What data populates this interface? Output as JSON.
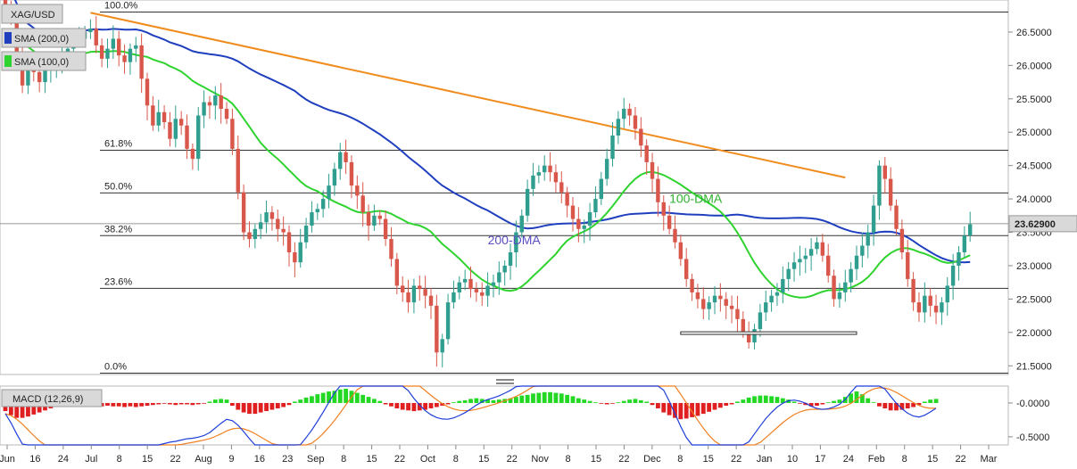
{
  "chart_data": [
    {
      "type": "candlestick",
      "symbol": "XAG/USD",
      "legend": [
        {
          "name": "SMA (200,0)",
          "color": "#1f3fbf"
        },
        {
          "name": "SMA (100,0)",
          "color": "#2fd32f"
        }
      ],
      "last_price": "23.62900",
      "y_ticks": [
        "26.5000",
        "26.0000",
        "25.5000",
        "25.0000",
        "24.5000",
        "24.0000",
        "23.5000",
        "23.0000",
        "22.5000",
        "22.0000",
        "21.5000"
      ],
      "ylim": [
        21.37,
        26.98
      ],
      "x_ticks": [
        "Jun",
        "16",
        "24",
        "Jul",
        "8",
        "15",
        "22",
        "Aug",
        "9",
        "16",
        "23",
        "Sep",
        "8",
        "15",
        "22",
        "Oct",
        "8",
        "15",
        "22",
        "Nov",
        "8",
        "15",
        "22",
        "Dec",
        "8",
        "15",
        "22",
        "Jan",
        "10",
        "17",
        "24",
        "Feb",
        "8",
        "15",
        "22",
        "Mar"
      ],
      "fib_levels": [
        {
          "label": "100.0%",
          "value": 26.8
        },
        {
          "label": "61.8%",
          "value": 24.73
        },
        {
          "label": "50.0%",
          "value": 24.09
        },
        {
          "label": "38.2%",
          "value": 23.45
        },
        {
          "label": "23.6%",
          "value": 22.66
        },
        {
          "label": "0.0%",
          "value": 21.39
        }
      ],
      "annotations": [
        {
          "text": "200-DMA",
          "color": "#5a4fc0"
        },
        {
          "text": "100-DMA",
          "color": "#2fb02f"
        }
      ],
      "trendline": {
        "color": "#f08c1e",
        "from": {
          "i": 15,
          "v": 26.79
        },
        "to": {
          "i": 148,
          "v": 24.32
        }
      },
      "support_box": {
        "from_i": 119,
        "to_i": 150,
        "low": 21.97,
        "high": 22.01
      },
      "closes": [
        26.84,
        26.7,
        26.2,
        25.7,
        25.95,
        25.9,
        25.75,
        25.92,
        26.0,
        26.08,
        26.15,
        26.25,
        26.35,
        26.4,
        26.5,
        26.55,
        26.3,
        26.1,
        26.25,
        26.4,
        26.15,
        26.05,
        26.25,
        26.3,
        25.8,
        25.4,
        25.1,
        25.3,
        25.15,
        24.9,
        25.2,
        25.1,
        24.75,
        24.6,
        25.25,
        25.45,
        25.4,
        25.55,
        25.35,
        25.2,
        24.75,
        24.1,
        23.5,
        23.4,
        23.55,
        23.65,
        23.8,
        23.7,
        23.55,
        23.5,
        23.2,
        23.05,
        23.35,
        23.6,
        23.8,
        23.85,
        24.0,
        24.2,
        24.45,
        24.7,
        24.55,
        24.2,
        24.05,
        23.8,
        23.6,
        23.75,
        23.7,
        23.4,
        23.1,
        22.7,
        22.6,
        22.45,
        22.7,
        22.65,
        22.55,
        22.4,
        21.7,
        21.9,
        22.45,
        22.6,
        22.75,
        22.8,
        22.65,
        22.6,
        22.55,
        22.7,
        22.75,
        22.9,
        23.0,
        23.2,
        23.5,
        23.75,
        24.15,
        24.35,
        24.4,
        24.5,
        24.4,
        24.25,
        24.1,
        23.9,
        23.7,
        23.55,
        23.6,
        23.8,
        24.0,
        24.3,
        24.6,
        24.95,
        25.2,
        25.35,
        25.25,
        25.05,
        24.8,
        24.55,
        24.3,
        23.95,
        23.75,
        23.55,
        23.35,
        23.1,
        22.8,
        22.6,
        22.5,
        22.35,
        22.45,
        22.55,
        22.5,
        22.4,
        22.35,
        22.2,
        22.0,
        21.85,
        22.05,
        22.3,
        22.45,
        22.55,
        22.6,
        22.8,
        22.95,
        23.05,
        23.1,
        23.15,
        23.25,
        23.35,
        23.15,
        22.85,
        22.5,
        22.6,
        22.75,
        22.95,
        23.15,
        23.3,
        23.5,
        23.9,
        24.5,
        24.3,
        23.9,
        23.55,
        23.2,
        22.8,
        22.45,
        22.3,
        22.55,
        22.4,
        22.3,
        22.45,
        22.7,
        23.0,
        23.2,
        23.45,
        23.62
      ]
    },
    {
      "type": "bar",
      "title": "MACD (12,26,9)",
      "y_ticks": [
        "-0.0000",
        "-0.5000"
      ],
      "ylim": [
        -0.62,
        0.25
      ],
      "histogram": [
        -0.12,
        -0.18,
        -0.22,
        -0.22,
        -0.2,
        -0.17,
        -0.14,
        -0.11,
        -0.08,
        -0.05,
        -0.03,
        -0.01,
        -0.02,
        -0.01,
        -0.03,
        -0.05,
        -0.06,
        -0.05,
        -0.04,
        -0.05,
        -0.05,
        -0.06,
        -0.05,
        -0.06,
        -0.05,
        -0.04,
        -0.03,
        -0.02,
        -0.01,
        -0.02,
        -0.03,
        -0.02,
        -0.02,
        -0.03,
        -0.02,
        -0.01,
        0.02,
        0.05,
        0.06,
        0.05,
        -0.04,
        -0.1,
        -0.14,
        -0.16,
        -0.16,
        -0.14,
        -0.12,
        -0.1,
        -0.08,
        -0.06,
        -0.03,
        0.02,
        0.05,
        0.08,
        0.1,
        0.13,
        0.15,
        0.17,
        0.18,
        0.2,
        0.21,
        0.18,
        0.15,
        0.12,
        0.09,
        0.06,
        0.03,
        -0.02,
        -0.05,
        -0.08,
        -0.1,
        -0.11,
        -0.12,
        -0.11,
        -0.1,
        -0.08,
        -0.06,
        -0.04,
        -0.02,
        0.01,
        0.03,
        0.04,
        0.06,
        0.07,
        0.06,
        0.05,
        0.04,
        0.05,
        0.06,
        0.07,
        0.09,
        0.11,
        0.12,
        0.14,
        0.15,
        0.16,
        0.16,
        0.15,
        0.14,
        0.12,
        0.1,
        0.07,
        0.05,
        0.03,
        0.01,
        -0.01,
        -0.02,
        -0.01,
        0.01,
        0.03,
        0.05,
        0.06,
        0.04,
        0.02,
        -0.03,
        -0.08,
        -0.14,
        -0.18,
        -0.22,
        -0.24,
        -0.23,
        -0.21,
        -0.19,
        -0.16,
        -0.13,
        -0.1,
        -0.07,
        -0.04,
        -0.02,
        0.02,
        0.05,
        0.08,
        0.1,
        0.11,
        0.11,
        0.1,
        0.09,
        0.07,
        0.05,
        0.02,
        -0.01,
        -0.03,
        -0.05,
        -0.04,
        -0.02,
        0.01,
        0.03,
        0.05,
        0.09,
        0.14,
        0.17,
        0.13,
        0.07,
        0.01,
        -0.05,
        -0.08,
        -0.11,
        -0.11,
        -0.1,
        -0.08,
        -0.06,
        -0.03,
        0.02,
        0.05,
        0.06
      ],
      "macd_color": "#1f3fd9",
      "signal_color": "#f08020"
    }
  ],
  "colors": {
    "up": "#2f9e8e",
    "down": "#d8574a",
    "sma200": "#1f3fbf",
    "sma100": "#2fd32f"
  }
}
